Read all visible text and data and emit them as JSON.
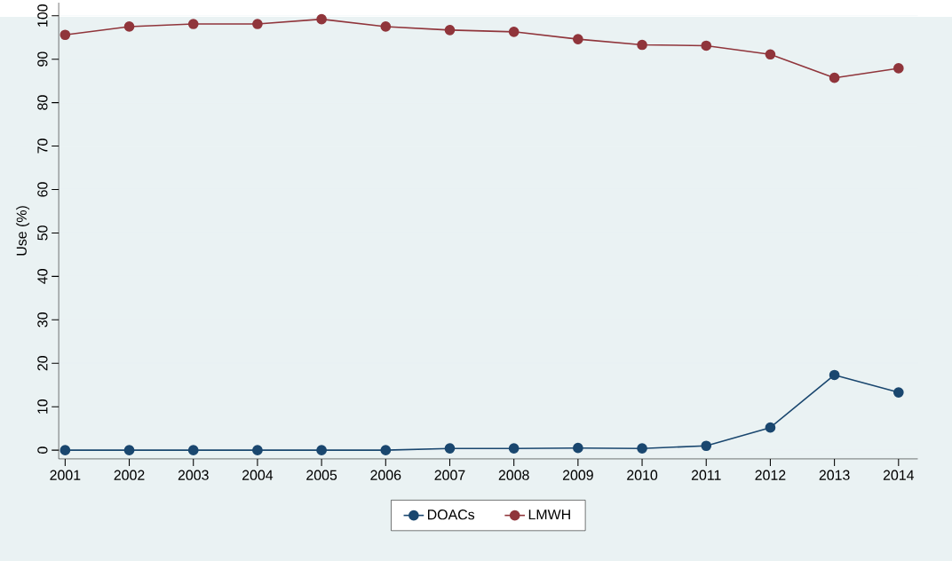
{
  "chart_data": {
    "type": "line",
    "ylabel": "Use (%)",
    "x": [
      2001,
      2002,
      2003,
      2004,
      2005,
      2006,
      2007,
      2008,
      2009,
      2010,
      2011,
      2012,
      2013,
      2014
    ],
    "series": [
      {
        "name": "DOACs",
        "color": "#1a476f",
        "values": [
          0,
          0,
          0,
          0,
          0,
          0,
          0.4,
          0.4,
          0.5,
          0.4,
          1.0,
          5.2,
          17.3,
          13.3
        ]
      },
      {
        "name": "LMWH",
        "color": "#90353b",
        "values": [
          95.6,
          97.5,
          98.1,
          98.1,
          99.2,
          97.5,
          96.7,
          96.3,
          94.6,
          93.3,
          93.1,
          91.1,
          85.7,
          87.9
        ]
      }
    ],
    "xlim": [
      2000.9,
      2014.3
    ],
    "xticks": [
      2001,
      2002,
      2003,
      2004,
      2005,
      2006,
      2007,
      2008,
      2009,
      2010,
      2011,
      2012,
      2013,
      2014
    ],
    "ylim": [
      -2,
      103
    ],
    "yticks": [
      0,
      10,
      20,
      30,
      40,
      50,
      60,
      70,
      80,
      90,
      100
    ],
    "grid": "y",
    "legend": "bottom",
    "marker": "circle",
    "line_style": "solid"
  }
}
